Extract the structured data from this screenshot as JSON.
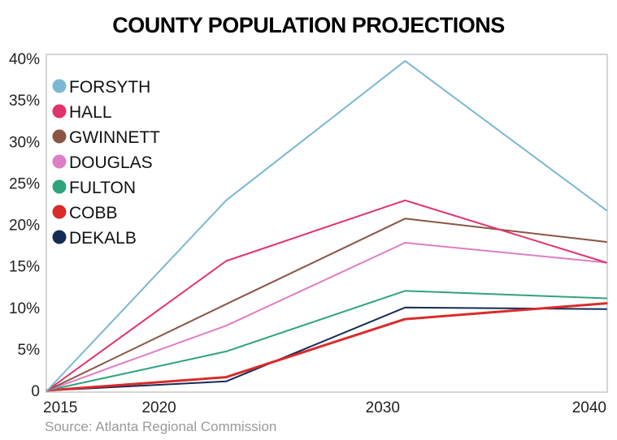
{
  "chart_data": {
    "type": "line",
    "title": "COUNTY POPULATION PROJECTIONS",
    "source": "Source: Atlanta Regional Commission",
    "x": [
      2015,
      2023,
      2031,
      2040
    ],
    "x_ticks": [
      2015,
      2020,
      2030,
      2040
    ],
    "x_tick_labels": [
      "2015",
      "2020",
      "2030",
      "2040"
    ],
    "xlim": [
      2015,
      2040
    ],
    "ylim": [
      0,
      40
    ],
    "y_ticks": [
      0,
      5,
      10,
      15,
      20,
      25,
      30,
      35,
      40
    ],
    "y_tick_labels": [
      "0",
      "5%",
      "10%",
      "15%",
      "20%",
      "25%",
      "30%",
      "35%",
      "40%"
    ],
    "grid": false,
    "legend_position": "top-left",
    "series": [
      {
        "name": "FORSYTH",
        "color": "#7bb8d1",
        "values": [
          0,
          22.9,
          39.7,
          21.7
        ]
      },
      {
        "name": "HALL",
        "color": "#e0336a",
        "values": [
          0,
          15.6,
          22.9,
          15.4
        ]
      },
      {
        "name": "GWINNETT",
        "color": "#8a5545",
        "values": [
          0,
          10.4,
          20.7,
          17.9
        ]
      },
      {
        "name": "DOUGLAS",
        "color": "#de7ec6",
        "values": [
          0,
          7.8,
          17.8,
          15.4
        ]
      },
      {
        "name": "FULTON",
        "color": "#2fa37e",
        "values": [
          0,
          4.7,
          12.0,
          11.1
        ]
      },
      {
        "name": "COBB",
        "color": "#d92b2b",
        "values": [
          0,
          1.6,
          8.6,
          10.5
        ]
      },
      {
        "name": "DEKALB",
        "color": "#142b58",
        "values": [
          0,
          1.1,
          10.0,
          9.8
        ]
      }
    ]
  }
}
